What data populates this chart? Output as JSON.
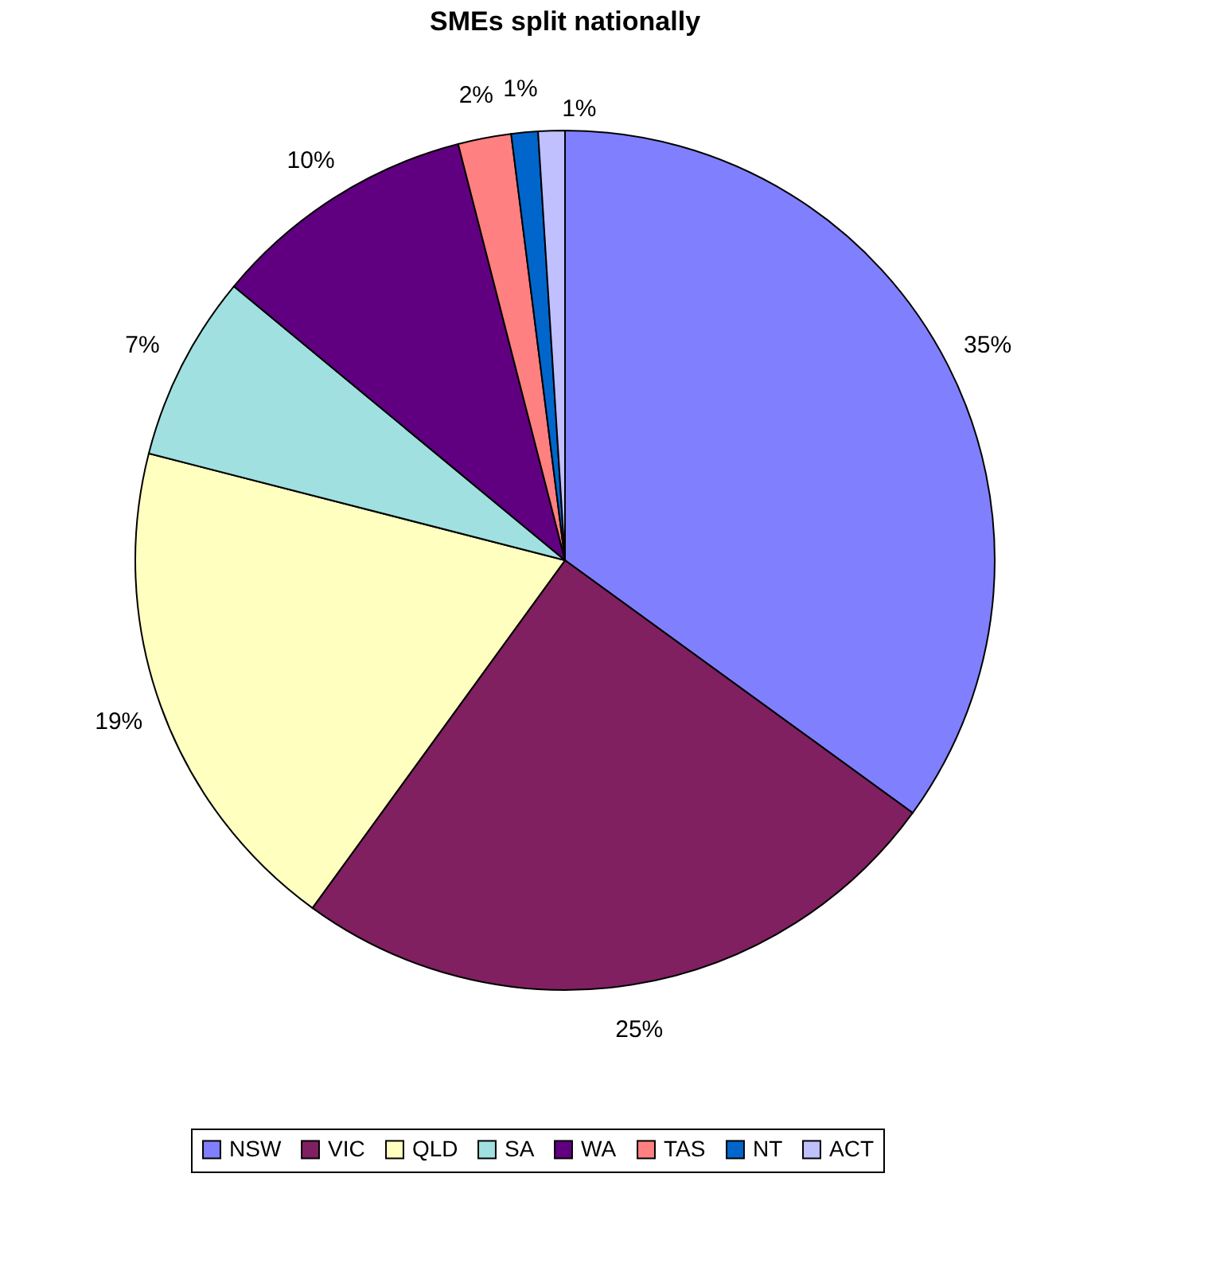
{
  "chart_data": {
    "type": "pie",
    "title": "SMEs split nationally",
    "categories": [
      "NSW",
      "VIC",
      "QLD",
      "SA",
      "WA",
      "TAS",
      "NT",
      "ACT"
    ],
    "values": [
      35,
      25,
      19,
      7,
      10,
      2,
      1,
      1
    ],
    "colors": [
      "#8080ff",
      "#802060",
      "#ffffc0",
      "#a0e0e0",
      "#600080",
      "#ff8080",
      "#0066cc",
      "#c0c0ff"
    ],
    "value_labels": [
      "35%",
      "25%",
      "19%",
      "7%",
      "10%",
      "2%",
      "1%",
      "1%"
    ],
    "legend": "bottom"
  }
}
